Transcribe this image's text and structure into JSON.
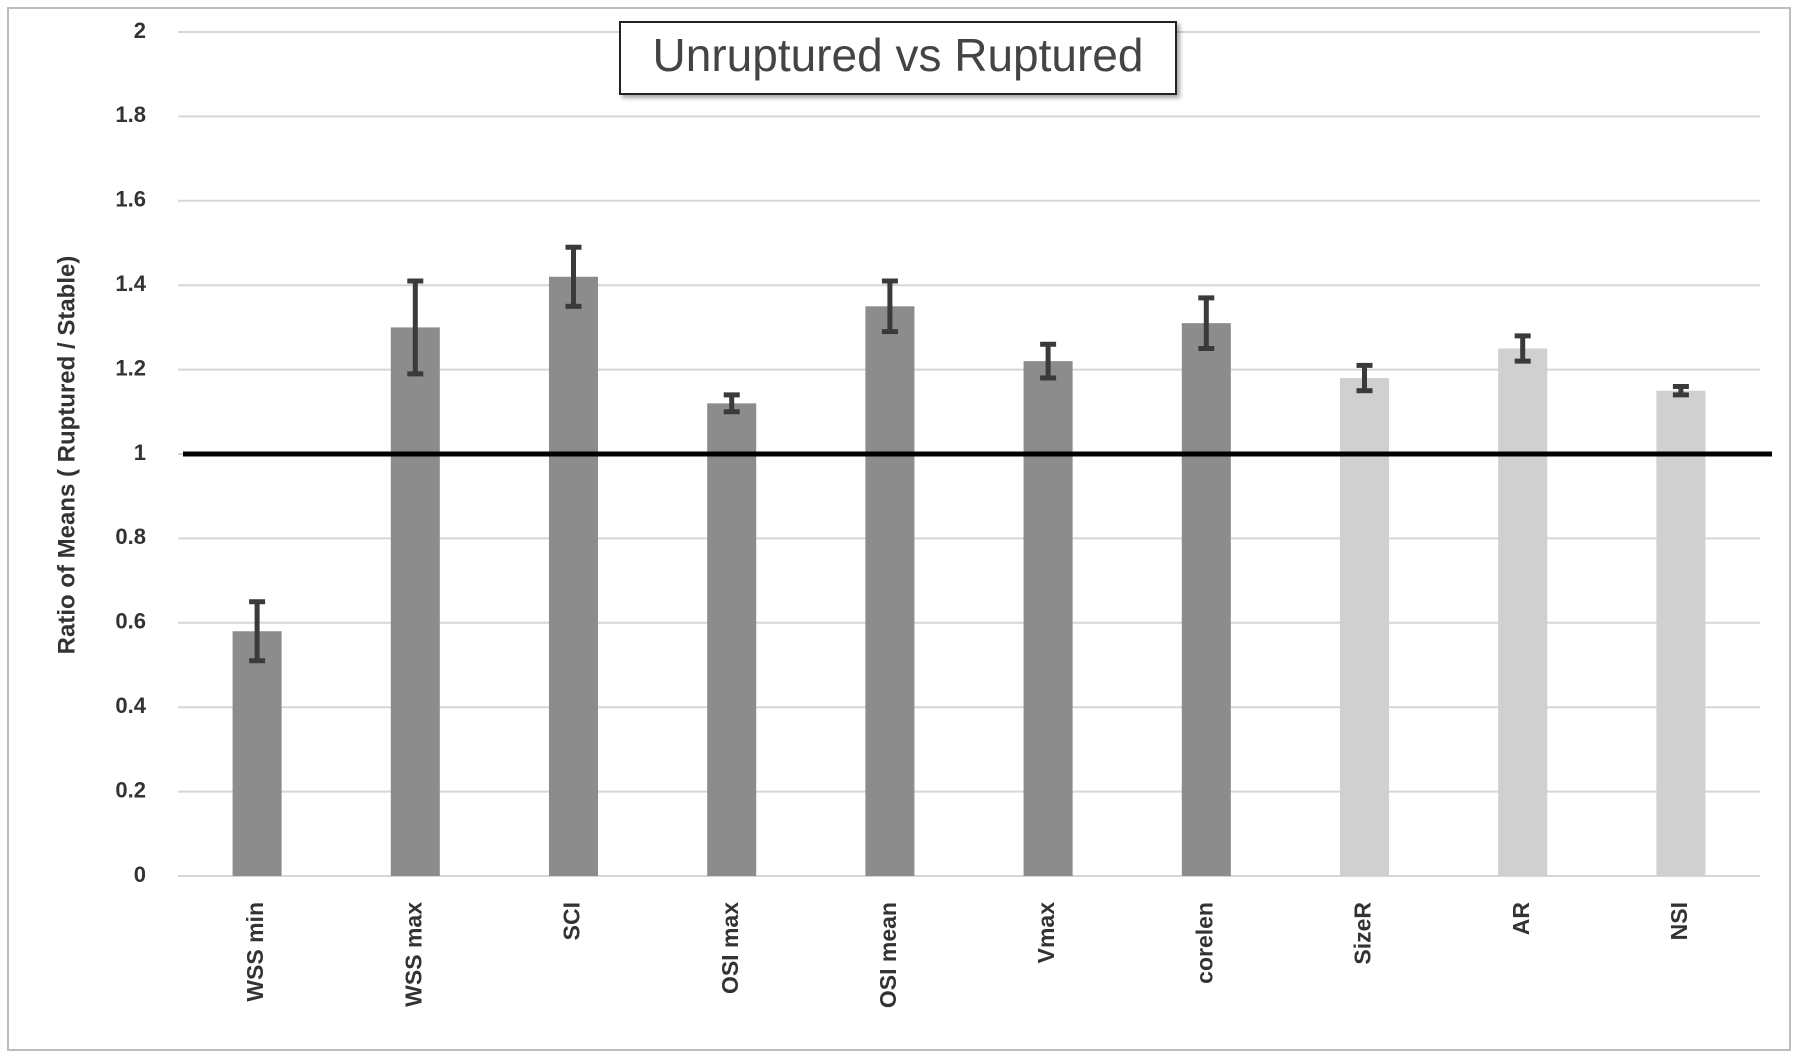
{
  "chart_data": {
    "type": "bar",
    "title": "Unruptured vs Ruptured",
    "y_label": "Ratio of Means  ( Ruptured / Stable)",
    "categories": [
      "WSS min",
      "WSS max",
      "SCI",
      "OSI max",
      "OSI mean",
      "Vmax",
      "corelen",
      "SizeR",
      "AR",
      "NSI"
    ],
    "values": [
      0.58,
      1.3,
      1.42,
      1.12,
      1.35,
      1.22,
      1.31,
      1.18,
      1.25,
      1.15
    ],
    "errors": [
      0.07,
      0.11,
      0.07,
      0.02,
      0.06,
      0.04,
      0.06,
      0.03,
      0.03,
      0.01
    ],
    "colors": [
      "#8c8c8c",
      "#8c8c8c",
      "#8c8c8c",
      "#8c8c8c",
      "#8c8c8c",
      "#8c8c8c",
      "#8c8c8c",
      "#d0d0d0",
      "#d0d0d0",
      "#d0d0d0"
    ],
    "error_color": "#3a3a3a",
    "reference_line": 1,
    "ylim": [
      0,
      2
    ],
    "yticks": [
      0,
      0.2,
      0.4,
      0.6,
      0.8,
      1,
      1.2,
      1.4,
      1.6,
      1.8,
      2
    ],
    "grid": true
  }
}
